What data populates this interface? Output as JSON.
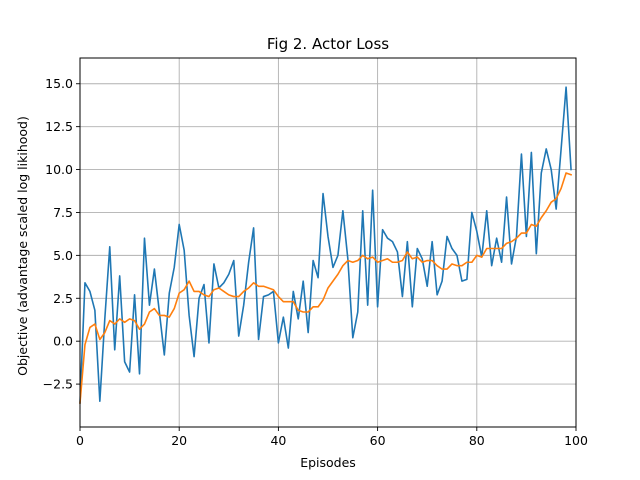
{
  "chart_data": {
    "type": "line",
    "title": "Fig 2. Actor Loss",
    "xlabel": "Episodes",
    "ylabel": "Objective (advantage scaled log likihood)",
    "xlim": [
      0,
      100
    ],
    "ylim": [
      -5.0,
      16.5
    ],
    "xticks": [
      0,
      20,
      40,
      60,
      80,
      100
    ],
    "xtick_labels": [
      "0",
      "20",
      "40",
      "60",
      "80",
      "100"
    ],
    "yticks": [
      -2.5,
      0.0,
      2.5,
      5.0,
      7.5,
      10.0,
      12.5,
      15.0
    ],
    "ytick_labels": [
      "−2.5",
      "0.0",
      "2.5",
      "5.0",
      "7.5",
      "10.0",
      "12.5",
      "15.0"
    ],
    "grid": true,
    "series": [
      {
        "color": "#1f77b4",
        "y": [
          -3.6,
          3.4,
          2.9,
          1.8,
          -3.5,
          1.3,
          5.5,
          -0.5,
          3.8,
          -1.2,
          -1.8,
          2.7,
          -1.9,
          6.0,
          2.1,
          4.2,
          1.7,
          -0.8,
          2.8,
          4.3,
          6.8,
          5.3,
          1.5,
          -0.9,
          2.5,
          3.3,
          -0.1,
          4.5,
          3.1,
          3.4,
          3.9,
          4.7,
          0.3,
          2.1,
          4.6,
          6.6,
          0.1,
          2.6,
          2.7,
          2.9,
          -0.1,
          1.4,
          -0.4,
          2.9,
          1.3,
          3.5,
          0.5,
          4.7,
          3.7,
          8.6,
          6.1,
          4.3,
          5.0,
          7.6,
          4.8,
          0.2,
          1.7,
          7.6,
          2.1,
          8.8,
          2.0,
          6.5,
          6.0,
          5.8,
          5.2,
          2.6,
          5.8,
          2.0,
          5.4,
          4.8,
          3.2,
          5.8,
          2.7,
          3.5,
          6.1,
          5.4,
          5.0,
          3.5,
          3.6,
          7.5,
          6.4,
          4.9,
          7.6,
          4.4,
          6.0,
          4.6,
          8.4,
          4.5,
          6.1,
          10.9,
          6.1,
          11.0,
          5.1,
          9.8,
          11.2,
          10.0,
          7.7,
          11.2,
          14.8,
          10.0
        ]
      },
      {
        "color": "#ff7f0e",
        "y": [
          -3.6,
          -0.2,
          0.8,
          1.0,
          0.1,
          0.5,
          1.2,
          1.0,
          1.3,
          1.1,
          1.3,
          1.2,
          0.7,
          1.0,
          1.7,
          1.9,
          1.5,
          1.5,
          1.4,
          1.9,
          2.8,
          3.0,
          3.5,
          2.9,
          2.9,
          2.7,
          2.6,
          3.0,
          3.1,
          2.9,
          2.7,
          2.6,
          2.6,
          2.9,
          3.1,
          3.4,
          3.2,
          3.2,
          3.1,
          3.0,
          2.6,
          2.3,
          2.3,
          2.3,
          1.8,
          1.7,
          1.7,
          2.0,
          2.0,
          2.4,
          3.1,
          3.5,
          3.9,
          4.4,
          4.7,
          4.6,
          4.7,
          5.0,
          4.8,
          4.9,
          4.6,
          4.7,
          4.8,
          4.6,
          4.6,
          4.7,
          5.2,
          4.8,
          4.9,
          4.6,
          4.7,
          4.7,
          4.4,
          4.2,
          4.2,
          4.5,
          4.4,
          4.4,
          4.6,
          4.6,
          5.0,
          4.9,
          5.4,
          5.4,
          5.4,
          5.4,
          5.7,
          5.8,
          6.0,
          6.3,
          6.3,
          6.8,
          6.7,
          7.2,
          7.6,
          8.1,
          8.3,
          8.9,
          9.8,
          9.7
        ]
      }
    ]
  }
}
